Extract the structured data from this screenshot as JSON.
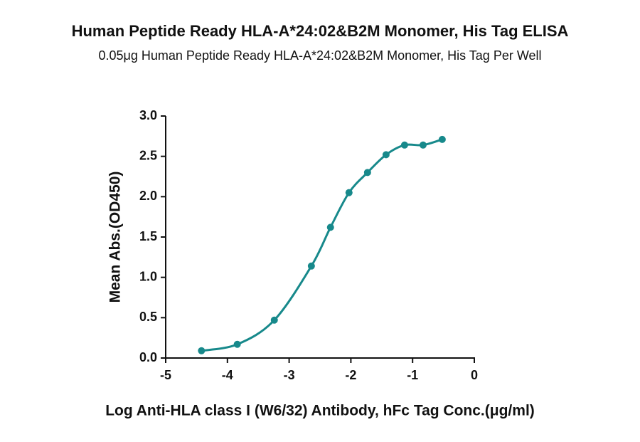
{
  "chart_data": {
    "type": "scatter",
    "title": "Human Peptide Ready HLA-A*24:02&B2M Monomer, His Tag ELISA",
    "subtitle": "0.05μg Human Peptide Ready HLA-A*24:02&B2M Monomer, His Tag Per Well",
    "x_label": "Log Anti-HLA class I (W6/32) Antibody, hFc Tag Conc.(μg/ml)",
    "y_label": "Mean Abs.(OD450)",
    "color": "#17898b",
    "x": [
      -4.42,
      -3.84,
      -3.24,
      -2.64,
      -2.33,
      -2.03,
      -1.73,
      -1.43,
      -1.13,
      -0.83,
      -0.52
    ],
    "values": [
      0.09,
      0.17,
      0.47,
      1.14,
      1.62,
      2.05,
      2.3,
      2.52,
      2.64,
      2.64,
      2.71
    ],
    "xlim": [
      -5,
      0
    ],
    "xticks": [
      -5,
      -4,
      -3,
      -2,
      -1,
      0
    ],
    "ylim": [
      0,
      3
    ],
    "yticks": [
      {
        "value": 0,
        "label": "0.0"
      },
      0.5,
      {
        "value": 1,
        "label": "1.0"
      },
      1.5,
      {
        "value": 2,
        "label": "2.0"
      },
      2.5,
      {
        "value": 3,
        "label": "3.0"
      }
    ]
  }
}
